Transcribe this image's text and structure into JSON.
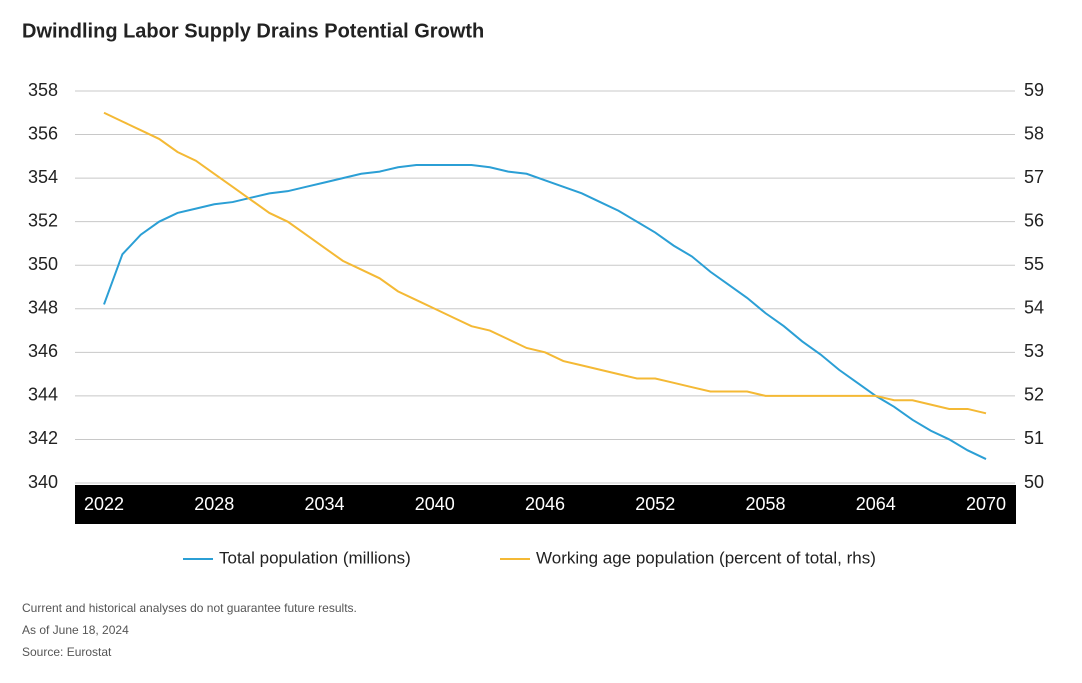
{
  "chart_data": {
    "type": "line",
    "title": "Dwindling Labor Supply Drains Potential Growth",
    "x": [
      2022,
      2023,
      2024,
      2025,
      2026,
      2027,
      2028,
      2029,
      2030,
      2031,
      2032,
      2033,
      2034,
      2035,
      2036,
      2037,
      2038,
      2039,
      2040,
      2041,
      2042,
      2043,
      2044,
      2045,
      2046,
      2047,
      2048,
      2049,
      2050,
      2051,
      2052,
      2053,
      2054,
      2055,
      2056,
      2057,
      2058,
      2059,
      2060,
      2061,
      2062,
      2063,
      2064,
      2065,
      2066,
      2067,
      2068,
      2069,
      2070
    ],
    "xlim": [
      2022,
      2070
    ],
    "xticks": [
      2022,
      2028,
      2034,
      2040,
      2046,
      2052,
      2058,
      2064,
      2070
    ],
    "ylim": [
      340,
      358
    ],
    "yticks": [
      340,
      342,
      344,
      346,
      348,
      350,
      352,
      354,
      356,
      358
    ],
    "y2lim": [
      50,
      59
    ],
    "y2ticks": [
      50,
      51,
      52,
      53,
      54,
      55,
      56,
      57,
      58,
      59
    ],
    "grid": true,
    "series": [
      {
        "name": "Total population (millions)",
        "color": "#2b9fd5",
        "values": [
          348.2,
          350.5,
          351.4,
          352.0,
          352.4,
          352.6,
          352.8,
          352.9,
          353.1,
          353.3,
          353.4,
          353.6,
          353.8,
          354.0,
          354.2,
          354.3,
          354.5,
          354.6,
          354.6,
          354.6,
          354.6,
          354.5,
          354.3,
          354.2,
          353.9,
          353.6,
          353.3,
          352.9,
          352.5,
          352.0,
          351.5,
          350.9,
          350.4,
          349.7,
          349.1,
          348.5,
          347.8,
          347.2,
          346.5,
          345.9,
          345.2,
          344.6,
          344.0,
          343.5,
          342.9,
          342.4,
          342.0,
          341.5,
          341.1
        ]
      },
      {
        "name": "Working age population (percent of total, rhs)",
        "color": "#f4b935",
        "axis": "y2",
        "values": [
          58.5,
          58.3,
          58.1,
          57.9,
          57.6,
          57.4,
          57.1,
          56.8,
          56.5,
          56.2,
          56.0,
          55.7,
          55.4,
          55.1,
          54.9,
          54.7,
          54.4,
          54.2,
          54.0,
          53.8,
          53.6,
          53.5,
          53.3,
          53.1,
          53.0,
          52.8,
          52.7,
          52.6,
          52.5,
          52.4,
          52.4,
          52.3,
          52.2,
          52.1,
          52.1,
          52.1,
          52.0,
          52.0,
          52.0,
          52.0,
          52.0,
          52.0,
          52.0,
          51.9,
          51.9,
          51.8,
          51.7,
          51.7,
          51.6
        ]
      }
    ],
    "notes": [
      "Current and historical analyses do not guarantee future results.",
      "As of June 18, 2024",
      "Source: Eurostat"
    ]
  }
}
